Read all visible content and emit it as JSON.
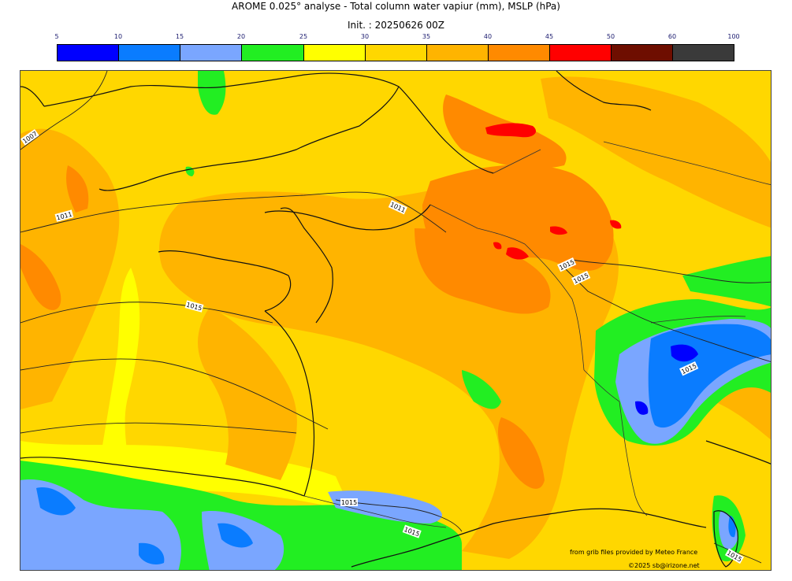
{
  "title": "AROME 0.025° analyse - Total column water vapiur (mm), MSLP (hPa)",
  "subtitle": "Init. : 20250626 00Z",
  "colorbar": {
    "ticks": [
      "5",
      "10",
      "15",
      "20",
      "25",
      "30",
      "35",
      "40",
      "45",
      "50",
      "60",
      "100"
    ],
    "colors": [
      "#0000ff",
      "#0a7cff",
      "#7aa6ff",
      "#22ee22",
      "#ffff00",
      "#ffd700",
      "#ffb400",
      "#ff8a00",
      "#ff0000",
      "#6e0e00",
      "#3a3a3a"
    ]
  },
  "isobar_labels": [
    "1007",
    "1011",
    "1011",
    "1015",
    "1015",
    "1015",
    "1015",
    "1015",
    "1015",
    "1015",
    "1015"
  ],
  "credits": {
    "line1": "from grib files provided by Meteo France",
    "line2": "©2025 sb@irizone.net"
  }
}
